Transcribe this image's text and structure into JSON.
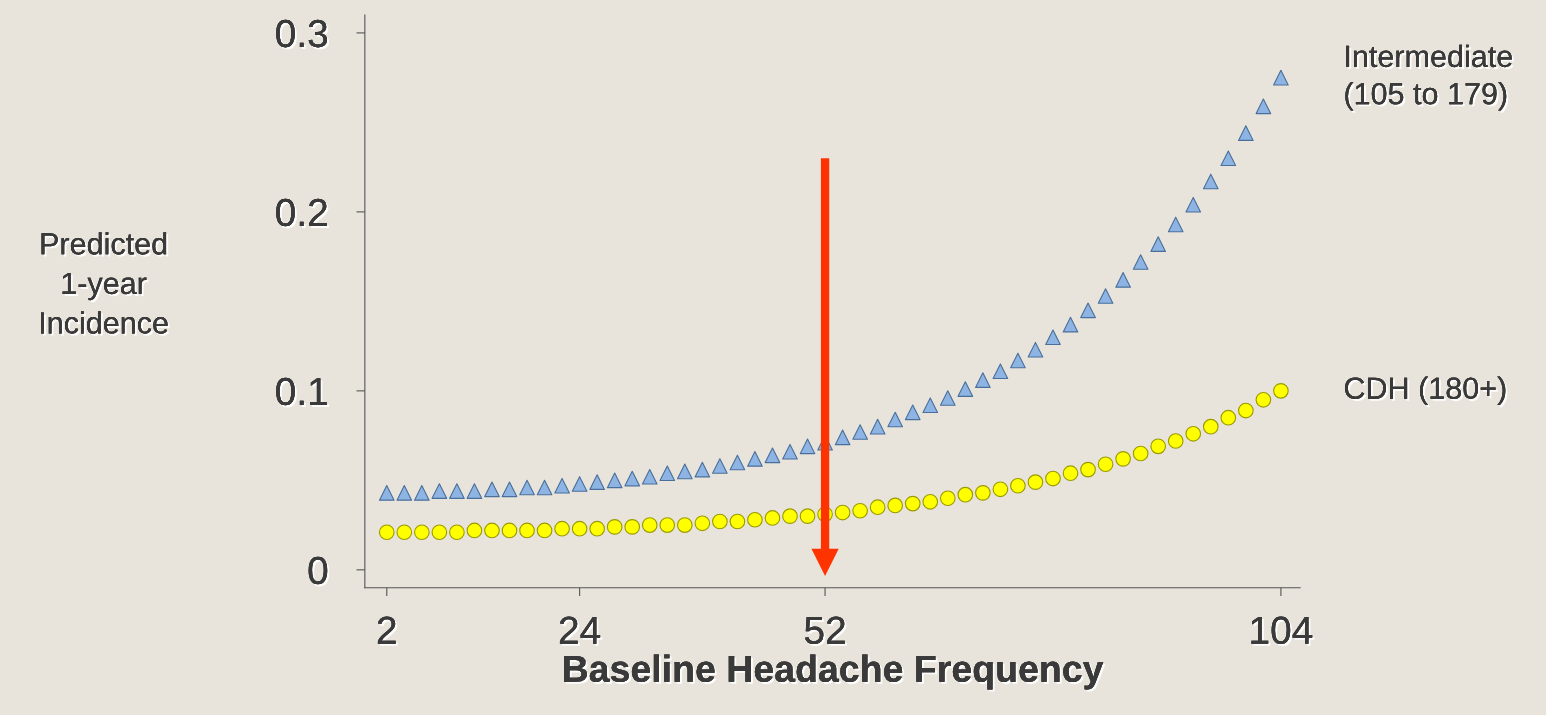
{
  "chart_data": {
    "type": "scatter",
    "xlabel": "Baseline Headache Frequency",
    "ylabel": "Predicted\n1-year\nIncidence",
    "xlim": [
      -0.5,
      106.2
    ],
    "ylim": [
      -0.01,
      0.31
    ],
    "xticks": [
      2,
      24,
      52,
      104
    ],
    "yticks": [
      {
        "value": 0,
        "label": "0"
      },
      0.1,
      0.2,
      0.3
    ],
    "x": [
      2,
      4,
      6,
      8,
      10,
      12,
      14,
      16,
      18,
      20,
      22,
      24,
      26,
      28,
      30,
      32,
      34,
      36,
      38,
      40,
      42,
      44,
      46,
      48,
      50,
      52,
      54,
      56,
      58,
      60,
      62,
      64,
      66,
      68,
      70,
      72,
      74,
      76,
      78,
      80,
      82,
      84,
      86,
      88,
      90,
      92,
      94,
      96,
      98,
      100,
      102,
      104
    ],
    "series": [
      {
        "name": "Intermediate\n(105 to 179)",
        "color": "#8db4e2",
        "marker": "triangle",
        "values": [
          0.043,
          0.043,
          0.043,
          0.044,
          0.044,
          0.044,
          0.045,
          0.045,
          0.046,
          0.046,
          0.047,
          0.048,
          0.049,
          0.05,
          0.051,
          0.052,
          0.054,
          0.055,
          0.056,
          0.058,
          0.06,
          0.062,
          0.064,
          0.066,
          0.069,
          0.071,
          0.074,
          0.077,
          0.08,
          0.084,
          0.088,
          0.092,
          0.096,
          0.101,
          0.106,
          0.111,
          0.117,
          0.123,
          0.13,
          0.137,
          0.145,
          0.153,
          0.162,
          0.172,
          0.182,
          0.193,
          0.204,
          0.217,
          0.23,
          0.244,
          0.259,
          0.275
        ]
      },
      {
        "name": "CDH (180+)",
        "color": "#ffff00",
        "marker": "circle",
        "values": [
          0.021,
          0.021,
          0.021,
          0.021,
          0.021,
          0.022,
          0.022,
          0.022,
          0.022,
          0.022,
          0.023,
          0.023,
          0.023,
          0.024,
          0.024,
          0.025,
          0.025,
          0.025,
          0.026,
          0.027,
          0.027,
          0.028,
          0.029,
          0.03,
          0.03,
          0.031,
          0.032,
          0.033,
          0.035,
          0.036,
          0.037,
          0.038,
          0.04,
          0.042,
          0.043,
          0.045,
          0.047,
          0.049,
          0.051,
          0.054,
          0.056,
          0.059,
          0.062,
          0.065,
          0.069,
          0.072,
          0.076,
          0.08,
          0.085,
          0.089,
          0.095,
          0.1
        ]
      }
    ],
    "ref_lines": [
      {
        "axis": "x",
        "value": 52,
        "color": "#ff3300"
      }
    ],
    "grid": false,
    "legend": false
  }
}
